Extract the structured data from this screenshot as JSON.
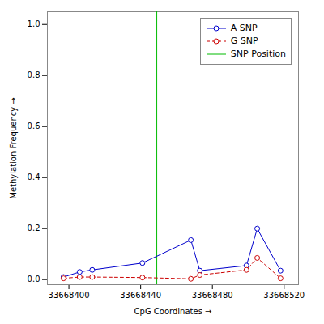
{
  "chart_data": {
    "type": "line",
    "xlabel": "CpG Coordinates",
    "ylabel": "Methylation Frequency",
    "x": [
      33668397,
      33668406,
      33668413,
      33668441,
      33668468,
      33668473,
      33668499,
      33668505,
      33668518
    ],
    "series": [
      {
        "name": "A SNP",
        "color": "#0000cc",
        "marker": "circle",
        "line_style": "solid",
        "values": [
          0.01,
          0.03,
          0.038,
          0.065,
          0.155,
          0.035,
          0.055,
          0.2,
          0.035
        ]
      },
      {
        "name": "G SNP",
        "color": "#cc0000",
        "marker": "circle",
        "line_style": "dashed",
        "values": [
          0.005,
          0.01,
          0.01,
          0.008,
          0.003,
          0.018,
          0.038,
          0.085,
          0.005
        ]
      }
    ],
    "vlines": [
      {
        "name": "SNP Position",
        "x": 33668449,
        "color": "#00bb00",
        "line_style": "solid"
      }
    ],
    "xlim": [
      33668388,
      33668528
    ],
    "ylim": [
      -0.02,
      1.05
    ],
    "xticks": [
      33668400,
      33668440,
      33668480,
      33668520
    ],
    "yticks": [
      {
        "value": 0,
        "label": "0.0"
      },
      0.2,
      0.4,
      0.6,
      0.8,
      {
        "value": 1,
        "label": "1.0"
      }
    ],
    "grid": false,
    "legend": "upper right"
  }
}
